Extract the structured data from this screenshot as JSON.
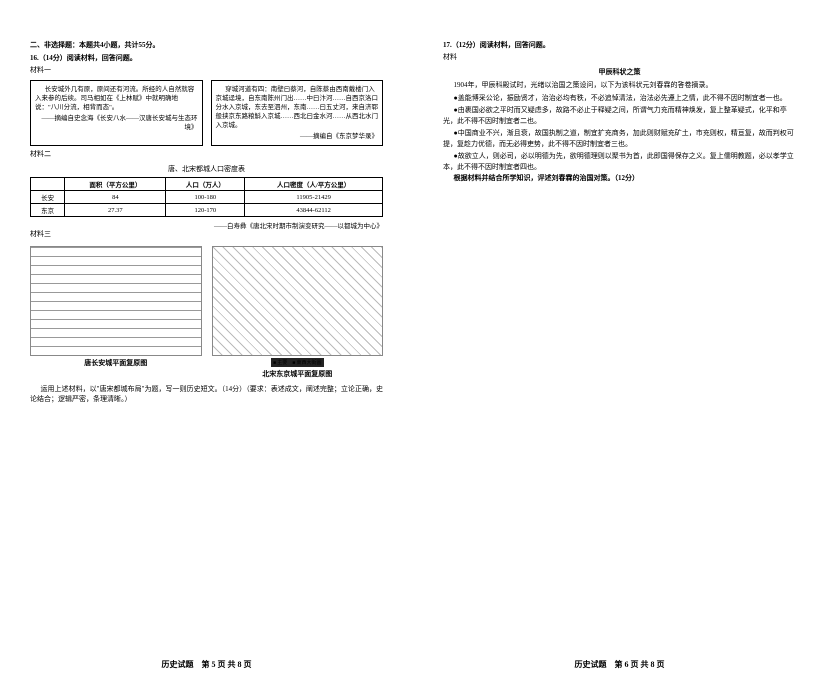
{
  "p1": {
    "section_heading": "二、非选择题：本题共4小题，共计55分。",
    "q16_head": "16.（14分）阅读材料，回答问题。",
    "mat1_label": "材料一",
    "box_left": "长安城外几有原，原间还有河流。所经的人自然就容入来参的后续。司马相如在《上林赋》中就明确地说：\"八川分流，相背而态\"。",
    "box_left_cite": "——摘编自史念海《长安八水——汉唐长安城与生态环境》",
    "box_right": "穿城河道有四：南壁曰蔡河，自陈蔡由西南戴楼门入京城迳境，自东南陈州门出……中曰汴河……自西京洛口分水入京城，东去至泗州，东南……曰五丈河，来自济郓般挟京东路粮斛入京城……西北曰金水河……从西北水门入京城。",
    "box_right_cite": "——摘编自《东京梦华录》",
    "mat2_label": "材料二",
    "table_title": "唐、北宋都城人口密度表",
    "th1": "面积（平方公里）",
    "th2": "人口（万人）",
    "th3": "人口密度（人/平方公里）",
    "r1c0": "长安",
    "r1c1": "84",
    "r1c2": "100-180",
    "r1c3": "11905-21429",
    "r2c0": "东京",
    "r2c1": "27.37",
    "r2c2": "120-170",
    "r2c3": "43844-62112",
    "table_cite": "——白寿彝《唐北宋时期市制演变研究——以都城为中心》",
    "mat3_label": "材料三",
    "map1_cap": "唐长安城平面复原图",
    "map2_cap": "北宋东京城平面复原图",
    "legend": "■ 主要　■ 東西大街圖",
    "q16_task": "运用上述材料，以\"唐宋都城布局\"为题，写一则历史短文。（14分）（要求：表述成文，阐述完整；立论正确，史论结合；逻辑严密，条理清晰。）",
    "footer1": "历史试题　第 5 页 共 8 页"
  },
  "p2": {
    "q17_head": "17.（12分）阅读材料，回答问题。",
    "mat_label": "材料",
    "title": "甲辰科状之策",
    "intro": "1904年，甲辰科殿试时，光绪以治国之策设问，以下为该科状元刘春霖的答卷摘录。",
    "b1": "●盖能博采公论，振励贤才，治治必均有秩，不必追悼清法，治法必先遵上之情，此不得不因时制宜者一也。",
    "b2": "●由裹国必欲之平时而又疑虑多，故路不必止于释疑之间，所谓气力充而精神焕发，复上整革疑式，化平和亭光，此不得不因时制宜者二也。",
    "b3": "●中国商业不兴，渐且衰，故国执制之道，制宜扩充商务，加此则财赋充矿土，市充则权，精亘复，故而判权可提，复趁力优德，而无必得吏势，此不得不因时制宜者三也。",
    "b4": "●故欲立人，则必司，必以明德为先，欲明德理则以聚书为首，此即国得保存之义。复上儒明教题，必以孝学立本，此不得不因时制宜者四也。",
    "task": "根据材料并结合所学知识，评述刘春霖的治国对策。（12分）",
    "footer2": "历史试题　第 6 页 共 8 页"
  }
}
